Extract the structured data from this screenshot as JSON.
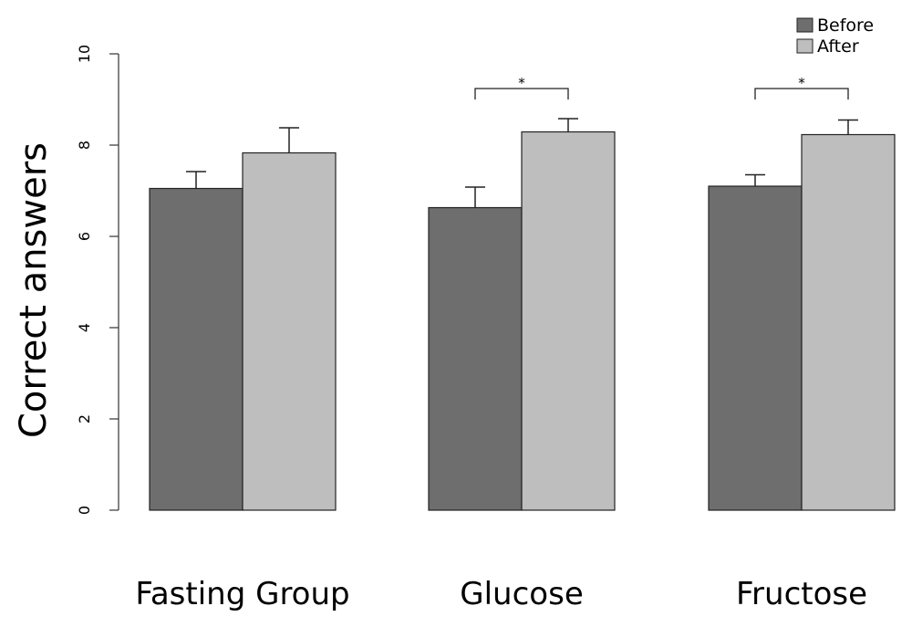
{
  "chart_data": {
    "type": "bar",
    "title": "",
    "xlabel": "",
    "ylabel": "Correct answers",
    "ylim": [
      0,
      10
    ],
    "yticks": [
      0,
      2,
      4,
      6,
      8,
      10
    ],
    "categories": [
      "Fasting Group",
      "Glucose",
      "Fructose"
    ],
    "series": [
      {
        "name": "Before",
        "values": [
          7.05,
          6.63,
          7.1
        ],
        "error": [
          0.37,
          0.45,
          0.25
        ],
        "color": "#6e6e6e"
      },
      {
        "name": "After",
        "values": [
          7.83,
          8.29,
          8.23
        ],
        "error": [
          0.55,
          0.29,
          0.32
        ],
        "color": "#bebebe"
      }
    ],
    "legend": {
      "position": "top-right",
      "entries": [
        "Before",
        "After"
      ]
    },
    "significance": [
      {
        "category": "Glucose",
        "label": "*"
      },
      {
        "category": "Fructose",
        "label": "*"
      }
    ],
    "grid": false
  }
}
